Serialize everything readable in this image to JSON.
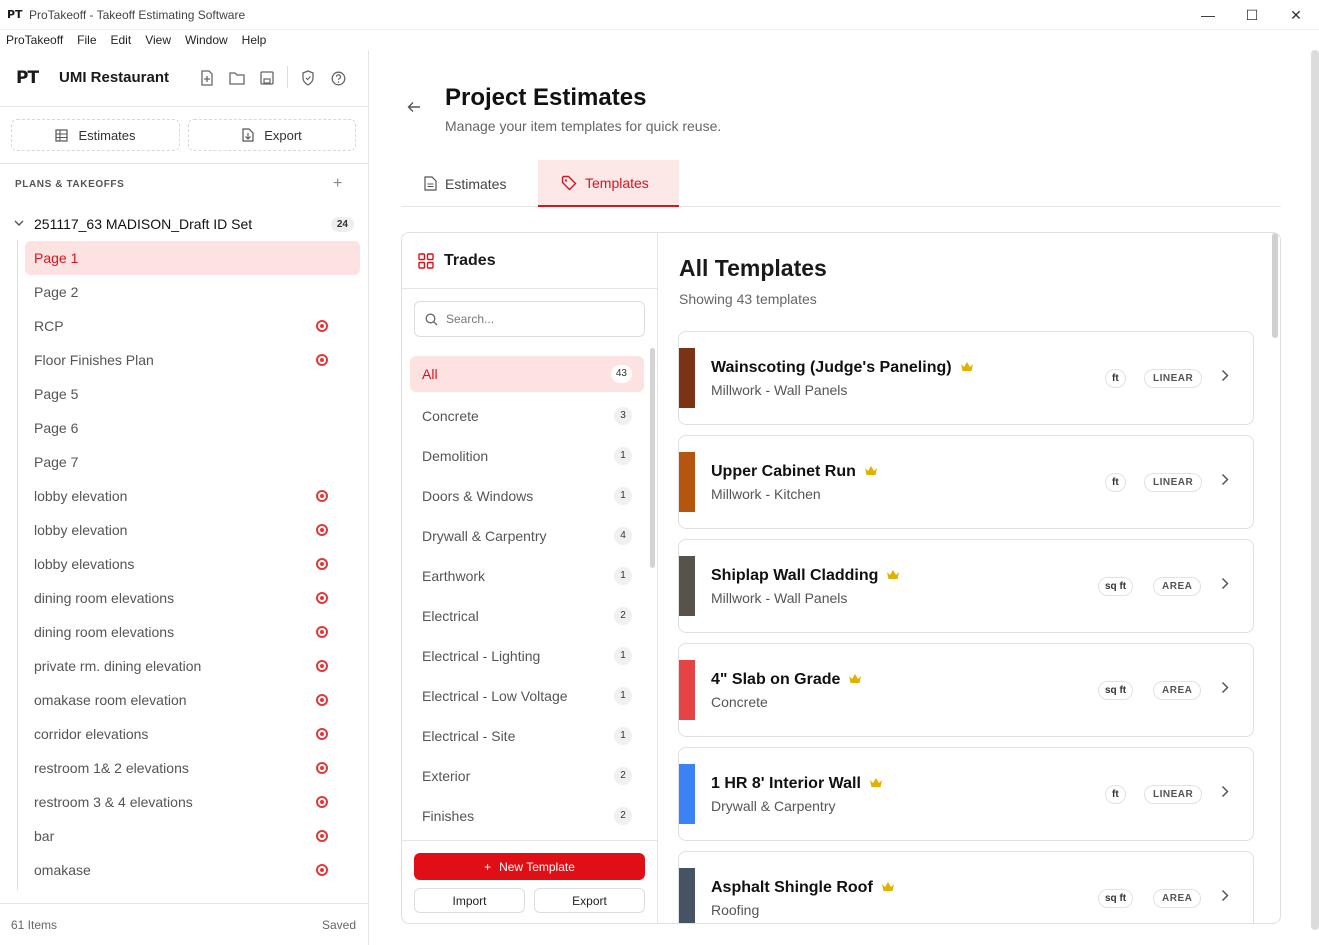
{
  "window": {
    "title": "ProTakeoff - Takeoff Estimating Software",
    "app_icon_text": "PT",
    "minimize": "—",
    "maximize": "☐",
    "close": "✕"
  },
  "menu": [
    "ProTakeoff",
    "File",
    "Edit",
    "View",
    "Window",
    "Help"
  ],
  "sidebar": {
    "logo": "PT",
    "project_name": "UMI Restaurant",
    "estimates_label": "Estimates",
    "export_label": "Export",
    "section_label": "PLANS & TAKEOFFS",
    "plan_set": {
      "name": "251117_63 MADISON_Draft ID Set",
      "count": "24"
    },
    "pages": [
      {
        "label": "Page 1",
        "target": false
      },
      {
        "label": "Page 2",
        "target": false
      },
      {
        "label": "RCP",
        "target": true
      },
      {
        "label": "Floor Finishes Plan",
        "target": true
      },
      {
        "label": "Page 5",
        "target": false
      },
      {
        "label": "Page 6",
        "target": false
      },
      {
        "label": "Page 7",
        "target": false
      },
      {
        "label": "lobby elevation",
        "target": true
      },
      {
        "label": "lobby elevation",
        "target": true
      },
      {
        "label": "lobby elevations",
        "target": true
      },
      {
        "label": "dining room elevations",
        "target": true
      },
      {
        "label": "dining room elevations",
        "target": true
      },
      {
        "label": "private rm. dining elevation",
        "target": true
      },
      {
        "label": "omakase room elevation",
        "target": true
      },
      {
        "label": "corridor elevations",
        "target": true
      },
      {
        "label": "restroom 1& 2 elevations",
        "target": true
      },
      {
        "label": "restroom 3 & 4 elevations",
        "target": true
      },
      {
        "label": "bar",
        "target": true
      },
      {
        "label": "omakase",
        "target": true
      }
    ],
    "footer_items": "61 Items",
    "footer_status": "Saved"
  },
  "main": {
    "title": "Project Estimates",
    "subtitle": "Manage your item templates for quick reuse.",
    "tabs": [
      {
        "label": "Estimates",
        "active": false
      },
      {
        "label": "Templates",
        "active": true
      }
    ]
  },
  "trades": {
    "title": "Trades",
    "search_placeholder": "Search...",
    "items": [
      {
        "label": "All",
        "count": "43"
      },
      {
        "label": "Concrete",
        "count": "3"
      },
      {
        "label": "Demolition",
        "count": "1"
      },
      {
        "label": "Doors & Windows",
        "count": "1"
      },
      {
        "label": "Drywall & Carpentry",
        "count": "4"
      },
      {
        "label": "Earthwork",
        "count": "1"
      },
      {
        "label": "Electrical",
        "count": "2"
      },
      {
        "label": "Electrical - Lighting",
        "count": "1"
      },
      {
        "label": "Electrical - Low Voltage",
        "count": "1"
      },
      {
        "label": "Electrical - Site",
        "count": "1"
      },
      {
        "label": "Exterior",
        "count": "2"
      },
      {
        "label": "Finishes",
        "count": "2"
      }
    ],
    "new_template": "New Template",
    "import": "Import",
    "export": "Export"
  },
  "templates": {
    "title": "All Templates",
    "subtitle": "Showing 43 templates",
    "items": [
      {
        "name": "Wainscoting (Judge's Paneling)",
        "category": "Millwork - Wall Panels",
        "unit": "ft",
        "kind": "LINEAR",
        "color": "#7a3413"
      },
      {
        "name": "Upper Cabinet Run",
        "category": "Millwork - Kitchen",
        "unit": "ft",
        "kind": "LINEAR",
        "color": "#b5560f"
      },
      {
        "name": "Shiplap Wall Cladding",
        "category": "Millwork - Wall Panels",
        "unit": "sq ft",
        "kind": "AREA",
        "color": "#57524c"
      },
      {
        "name": "4\" Slab on Grade",
        "category": "Concrete",
        "unit": "sq ft",
        "kind": "AREA",
        "color": "#e84343"
      },
      {
        "name": "1 HR 8' Interior Wall",
        "category": "Drywall & Carpentry",
        "unit": "ft",
        "kind": "LINEAR",
        "color": "#3b82f6"
      },
      {
        "name": "Asphalt Shingle Roof",
        "category": "Roofing",
        "unit": "sq ft",
        "kind": "AREA",
        "color": "#465365"
      }
    ]
  }
}
